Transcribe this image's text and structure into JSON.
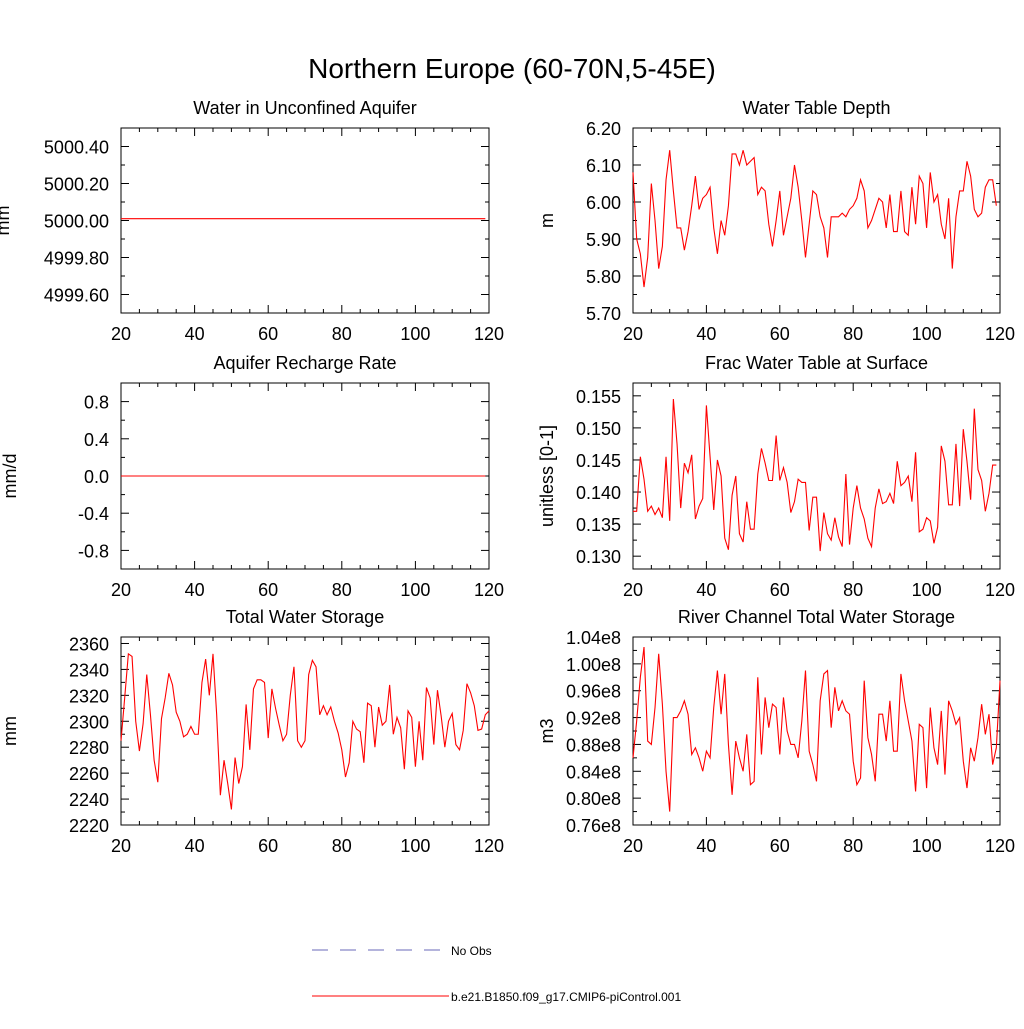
{
  "figure": {
    "title": "Northern Europe (60-70N,5-45E)"
  },
  "chart_data": [
    {
      "type": "line",
      "title": "Water in Unconfined Aquifer",
      "ylabel": "mm",
      "xlim": [
        20,
        120
      ],
      "ylim": [
        4999.5,
        5000.5
      ],
      "xticks": [
        20,
        40,
        60,
        80,
        100,
        120
      ],
      "xtick_labels": [
        "20",
        "40",
        "60",
        "80",
        "100",
        "120"
      ],
      "yticks": [
        4999.6,
        4999.8,
        5000.0,
        5000.2,
        5000.4
      ],
      "ytick_labels": [
        "4999.60",
        "4999.80",
        "5000.00",
        "5000.20",
        "5000.40"
      ],
      "grid": false,
      "x_start": 20,
      "series": [
        {
          "name": "b.e21.B1850.f09_g17.CMIP6-piControl.001",
          "color": "#ff0000",
          "values": [
            5000.01,
            5000.01,
            5000.01,
            5000.01,
            5000.01,
            5000.01,
            5000.01,
            5000.01,
            5000.01,
            5000.01,
            5000.01,
            5000.01,
            5000.01,
            5000.01,
            5000.01,
            5000.01,
            5000.01,
            5000.01,
            5000.01,
            5000.01,
            5000.01,
            5000.01,
            5000.01,
            5000.01,
            5000.01,
            5000.01,
            5000.01,
            5000.01,
            5000.01,
            5000.01,
            5000.01,
            5000.01,
            5000.01,
            5000.01,
            5000.01,
            5000.01,
            5000.01,
            5000.01,
            5000.01,
            5000.01,
            5000.01,
            5000.01,
            5000.01,
            5000.01,
            5000.01,
            5000.01,
            5000.01,
            5000.01,
            5000.01,
            5000.01,
            5000.01,
            5000.01,
            5000.01,
            5000.01,
            5000.01,
            5000.01,
            5000.01,
            5000.01,
            5000.01,
            5000.01,
            5000.01,
            5000.01,
            5000.01,
            5000.01,
            5000.01,
            5000.01,
            5000.01,
            5000.01,
            5000.01,
            5000.01,
            5000.01,
            5000.01,
            5000.01,
            5000.01,
            5000.01,
            5000.01,
            5000.01,
            5000.01,
            5000.01,
            5000.01,
            5000.01,
            5000.01,
            5000.01,
            5000.01,
            5000.01,
            5000.01,
            5000.01,
            5000.01,
            5000.01,
            5000.01,
            5000.01,
            5000.01,
            5000.01,
            5000.01,
            5000.01,
            5000.01,
            5000.01,
            5000.01,
            5000.01,
            5000.01
          ]
        }
      ]
    },
    {
      "type": "line",
      "title": "Water Table Depth",
      "ylabel": "m",
      "xlim": [
        20,
        120
      ],
      "ylim": [
        5.7,
        6.2
      ],
      "xticks": [
        20,
        40,
        60,
        80,
        100,
        120
      ],
      "xtick_labels": [
        "20",
        "40",
        "60",
        "80",
        "100",
        "120"
      ],
      "yticks": [
        5.7,
        5.8,
        5.9,
        6.0,
        6.1,
        6.2
      ],
      "ytick_labels": [
        "5.70",
        "5.80",
        "5.90",
        "6.00",
        "6.10",
        "6.20"
      ],
      "grid": false,
      "x_start": 20,
      "series": [
        {
          "name": "b.e21.B1850.f09_g17.CMIP6-piControl.001",
          "color": "#ff0000",
          "values": [
            6.08,
            5.9,
            5.86,
            5.77,
            5.85,
            6.05,
            5.95,
            5.82,
            5.88,
            6.06,
            6.14,
            6.03,
            5.93,
            5.93,
            5.87,
            5.92,
            5.99,
            6.07,
            5.98,
            6.01,
            6.02,
            6.04,
            5.93,
            5.86,
            5.95,
            5.91,
            5.99,
            6.13,
            6.13,
            6.1,
            6.14,
            6.1,
            6.11,
            6.12,
            6.02,
            6.04,
            6.03,
            5.94,
            5.88,
            5.95,
            6.03,
            5.91,
            5.96,
            6.01,
            6.1,
            6.04,
            5.95,
            5.85,
            5.94,
            6.03,
            6.02,
            5.96,
            5.93,
            5.85,
            5.96,
            5.96,
            5.96,
            5.97,
            5.96,
            5.98,
            5.99,
            6.01,
            6.06,
            6.03,
            5.93,
            5.95,
            5.98,
            6.01,
            6.0,
            5.93,
            6.02,
            5.92,
            5.92,
            6.03,
            5.92,
            5.91,
            6.04,
            5.94,
            6.07,
            6.05,
            5.93,
            6.08,
            6.0,
            6.02,
            5.94,
            5.9,
            6.01,
            5.82,
            5.96,
            6.03,
            6.03,
            6.11,
            6.07,
            5.98,
            5.96,
            5.97,
            6.04,
            6.06,
            6.06,
            5.99
          ]
        }
      ]
    },
    {
      "type": "line",
      "title": "Aquifer Recharge Rate",
      "ylabel": "mm/d",
      "xlim": [
        20,
        120
      ],
      "ylim": [
        -1.0,
        1.0
      ],
      "xticks": [
        20,
        40,
        60,
        80,
        100,
        120
      ],
      "xtick_labels": [
        "20",
        "40",
        "60",
        "80",
        "100",
        "120"
      ],
      "yticks": [
        -0.8,
        -0.4,
        0.0,
        0.4,
        0.8
      ],
      "ytick_labels": [
        "-0.8",
        "-0.4",
        "0.0",
        "0.4",
        "0.8"
      ],
      "grid": false,
      "x_start": 20,
      "series": [
        {
          "name": "b.e21.B1850.f09_g17.CMIP6-piControl.001",
          "color": "#ff0000",
          "values": [
            0,
            0,
            0,
            0,
            0,
            0,
            0,
            0,
            0,
            0,
            0,
            0,
            0,
            0,
            0,
            0,
            0,
            0,
            0,
            0,
            0,
            0,
            0,
            0,
            0,
            0,
            0,
            0,
            0,
            0,
            0,
            0,
            0,
            0,
            0,
            0,
            0,
            0,
            0,
            0,
            0,
            0,
            0,
            0,
            0,
            0,
            0,
            0,
            0,
            0,
            0,
            0,
            0,
            0,
            0,
            0,
            0,
            0,
            0,
            0,
            0,
            0,
            0,
            0,
            0,
            0,
            0,
            0,
            0,
            0,
            0,
            0,
            0,
            0,
            0,
            0,
            0,
            0,
            0,
            0,
            0,
            0,
            0,
            0,
            0,
            0,
            0,
            0,
            0,
            0,
            0,
            0,
            0,
            0,
            0,
            0,
            0,
            0,
            0,
            0
          ]
        }
      ]
    },
    {
      "type": "line",
      "title": "Frac Water Table at Surface",
      "ylabel": "unitless [0-1]",
      "xlim": [
        20,
        120
      ],
      "ylim": [
        0.128,
        0.157
      ],
      "xticks": [
        20,
        40,
        60,
        80,
        100,
        120
      ],
      "xtick_labels": [
        "20",
        "40",
        "60",
        "80",
        "100",
        "120"
      ],
      "yticks": [
        0.13,
        0.135,
        0.14,
        0.145,
        0.15,
        0.155
      ],
      "ytick_labels": [
        "0.130",
        "0.135",
        "0.140",
        "0.145",
        "0.150",
        "0.155"
      ],
      "grid": false,
      "x_start": 20,
      "series": [
        {
          "name": "b.e21.B1850.f09_g17.CMIP6-piControl.001",
          "color": "#ff0000",
          "values": [
            0.137,
            0.137,
            0.1455,
            0.142,
            0.137,
            0.1378,
            0.1365,
            0.1375,
            0.136,
            0.1455,
            0.1355,
            0.1545,
            0.1475,
            0.1375,
            0.1445,
            0.143,
            0.1458,
            0.1358,
            0.1378,
            0.139,
            0.1535,
            0.1455,
            0.1372,
            0.145,
            0.1425,
            0.1328,
            0.131,
            0.1395,
            0.1425,
            0.1335,
            0.1322,
            0.1385,
            0.1342,
            0.1342,
            0.1428,
            0.1468,
            0.1445,
            0.1418,
            0.1418,
            0.1488,
            0.1418,
            0.1438,
            0.1415,
            0.1368,
            0.1385,
            0.142,
            0.1415,
            0.1415,
            0.134,
            0.1392,
            0.1392,
            0.1308,
            0.1368,
            0.1335,
            0.1325,
            0.136,
            0.133,
            0.1315,
            0.1428,
            0.1318,
            0.1375,
            0.141,
            0.1375,
            0.1358,
            0.1328,
            0.1315,
            0.1375,
            0.1405,
            0.1382,
            0.1385,
            0.1398,
            0.1382,
            0.1448,
            0.141,
            0.1415,
            0.1425,
            0.1385,
            0.1462,
            0.1338,
            0.1342,
            0.136,
            0.1355,
            0.132,
            0.1345,
            0.1472,
            0.1448,
            0.138,
            0.138,
            0.1475,
            0.1378,
            0.1498,
            0.1448,
            0.1388,
            0.153,
            0.1435,
            0.1418,
            0.137,
            0.1398,
            0.1442,
            0.1442
          ]
        }
      ]
    },
    {
      "type": "line",
      "title": "Total Water Storage",
      "ylabel": "mm",
      "xlim": [
        20,
        120
      ],
      "ylim": [
        2220,
        2365
      ],
      "xticks": [
        20,
        40,
        60,
        80,
        100,
        120
      ],
      "xtick_labels": [
        "20",
        "40",
        "60",
        "80",
        "100",
        "120"
      ],
      "yticks": [
        2220,
        2240,
        2260,
        2280,
        2300,
        2320,
        2340,
        2360
      ],
      "ytick_labels": [
        "2220",
        "2240",
        "2260",
        "2280",
        "2300",
        "2320",
        "2340",
        "2360"
      ],
      "grid": false,
      "x_start": 20,
      "series": [
        {
          "name": "b.e21.B1850.f09_g17.CMIP6-piControl.001",
          "color": "#ff0000",
          "values": [
            2285,
            2318,
            2352,
            2350,
            2300,
            2277,
            2298,
            2336,
            2305,
            2270,
            2253,
            2302,
            2318,
            2337,
            2328,
            2307,
            2300,
            2288,
            2290,
            2296,
            2290,
            2290,
            2330,
            2348,
            2320,
            2352,
            2305,
            2243,
            2270,
            2252,
            2232,
            2272,
            2252,
            2265,
            2313,
            2278,
            2325,
            2332,
            2332,
            2330,
            2287,
            2325,
            2310,
            2297,
            2285,
            2290,
            2320,
            2342,
            2285,
            2280,
            2285,
            2336,
            2347,
            2342,
            2305,
            2312,
            2305,
            2311,
            2300,
            2291,
            2278,
            2257,
            2268,
            2300,
            2294,
            2292,
            2268,
            2314,
            2312,
            2280,
            2311,
            2297,
            2300,
            2328,
            2290,
            2303,
            2295,
            2263,
            2308,
            2303,
            2265,
            2300,
            2270,
            2326,
            2318,
            2282,
            2324,
            2304,
            2280,
            2300,
            2306,
            2282,
            2278,
            2293,
            2329,
            2322,
            2312,
            2293,
            2294,
            2305,
            2308
          ]
        }
      ]
    },
    {
      "type": "line",
      "title": "River Channel Total Water Storage",
      "ylabel": "m3",
      "xlim": [
        20,
        120
      ],
      "ylim": [
        76000000.0,
        104000000.0
      ],
      "xticks": [
        20,
        40,
        60,
        80,
        100,
        120
      ],
      "xtick_labels": [
        "20",
        "40",
        "60",
        "80",
        "100",
        "120"
      ],
      "yticks": [
        76000000.0,
        80000000.0,
        84000000.0,
        88000000.0,
        92000000.0,
        96000000.0,
        100000000.0,
        104000000.0
      ],
      "ytick_labels": [
        "0.76e8",
        "0.80e8",
        "0.84e8",
        "0.88e8",
        "0.92e8",
        "0.96e8",
        "1.00e8",
        "1.04e8"
      ],
      "grid": false,
      "x_start": 20,
      "series": [
        {
          "name": "b.e21.B1850.f09_g17.CMIP6-piControl.001",
          "color": "#ff0000",
          "values": [
            86000000.0,
            91500000.0,
            98000000.0,
            102500000.0,
            88500000.0,
            88000000.0,
            93500000.0,
            101500000.0,
            94000000.0,
            84000000.0,
            78000000.0,
            92000000.0,
            92000000.0,
            93000000.0,
            94500000.0,
            92500000.0,
            86500000.0,
            87500000.0,
            86000000.0,
            84000000.0,
            87000000.0,
            86000000.0,
            93500000.0,
            99000000.0,
            92500000.0,
            98500000.0,
            88000000.0,
            80500000.0,
            88500000.0,
            86000000.0,
            84000000.0,
            89500000.0,
            82000000.0,
            82500000.0,
            98000000.0,
            86500000.0,
            95000000.0,
            90500000.0,
            94000000.0,
            93500000.0,
            86500000.0,
            95000000.0,
            90000000.0,
            88000000.0,
            88000000.0,
            86000000.0,
            91500000.0,
            99000000.0,
            87000000.0,
            85000000.0,
            82500000.0,
            94500000.0,
            98500000.0,
            99000000.0,
            90500000.0,
            96500000.0,
            93000000.0,
            94500000.0,
            93000000.0,
            92500000.0,
            85500000.0,
            82000000.0,
            83000000.0,
            97500000.0,
            89000000.0,
            86500000.0,
            82500000.0,
            92500000.0,
            92500000.0,
            88500000.0,
            94500000.0,
            87000000.0,
            87000000.0,
            98500000.0,
            94500000.0,
            91500000.0,
            88500000.0,
            81000000.0,
            91000000.0,
            90500000.0,
            81500000.0,
            93500000.0,
            87500000.0,
            85000000.0,
            93000000.0,
            83500000.0,
            94500000.0,
            93000000.0,
            91000000.0,
            92000000.0,
            85500000.0,
            81500000.0,
            87500000.0,
            85500000.0,
            89000000.0,
            94000000.0,
            89500000.0,
            92500000.0,
            85000000.0,
            87500000.0,
            97500000.0
          ]
        }
      ]
    }
  ],
  "legend": [
    {
      "label": "No Obs",
      "color": "#6a6ab8",
      "dash": true
    },
    {
      "label": "b.e21.B1850.f09_g17.CMIP6-piControl.001",
      "color": "#ff0000",
      "dash": false
    }
  ]
}
